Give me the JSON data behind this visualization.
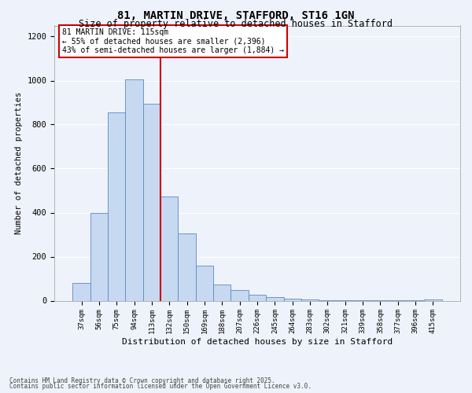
{
  "title1": "81, MARTIN DRIVE, STAFFORD, ST16 1GN",
  "title2": "Size of property relative to detached houses in Stafford",
  "xlabel": "Distribution of detached houses by size in Stafford",
  "ylabel": "Number of detached properties",
  "categories": [
    "37sqm",
    "56sqm",
    "75sqm",
    "94sqm",
    "113sqm",
    "132sqm",
    "150sqm",
    "169sqm",
    "188sqm",
    "207sqm",
    "226sqm",
    "245sqm",
    "264sqm",
    "283sqm",
    "302sqm",
    "321sqm",
    "339sqm",
    "358sqm",
    "377sqm",
    "396sqm",
    "415sqm"
  ],
  "values": [
    80,
    400,
    855,
    1005,
    895,
    475,
    305,
    160,
    75,
    50,
    28,
    15,
    10,
    5,
    3,
    2,
    1,
    1,
    1,
    1,
    5
  ],
  "bar_color": "#c6d9f0",
  "bar_edge_color": "#5a8ac6",
  "vline_index": 4,
  "vline_color": "#cc0000",
  "annotation_text": "81 MARTIN DRIVE: 115sqm\n← 55% of detached houses are smaller (2,396)\n43% of semi-detached houses are larger (1,884) →",
  "annotation_box_color": "#cc0000",
  "ylim": [
    0,
    1250
  ],
  "yticks": [
    0,
    200,
    400,
    600,
    800,
    1000,
    1200
  ],
  "footer1": "Contains HM Land Registry data © Crown copyright and database right 2025.",
  "footer2": "Contains public sector information licensed under the Open Government Licence v3.0.",
  "background_color": "#eef2fa",
  "grid_color": "#ffffff"
}
